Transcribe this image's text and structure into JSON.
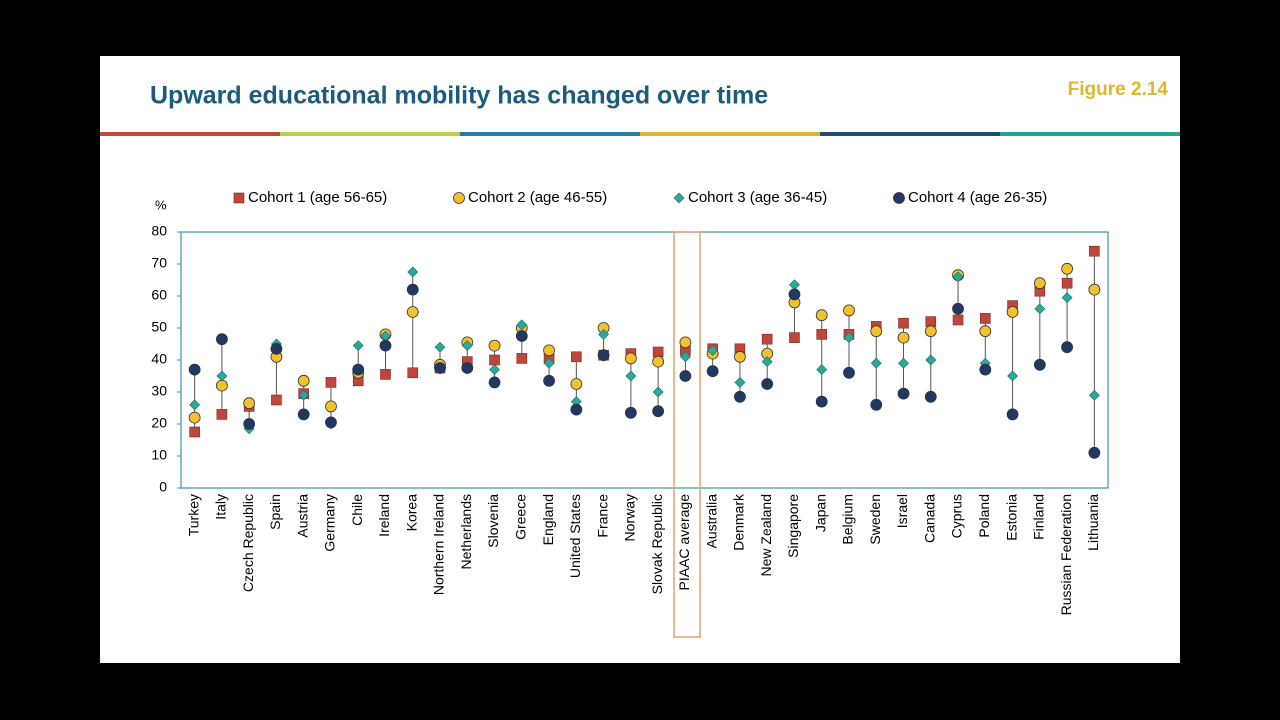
{
  "chart_data": {
    "type": "dot-range",
    "title": "Upward educational mobility has changed over time",
    "figure_label": "Figure 2.14",
    "y_label": "%",
    "categories": [
      "Turkey",
      "Italy",
      "Czech Republic",
      "Spain",
      "Austria",
      "Germany",
      "Chile",
      "Ireland",
      "Korea",
      "Northern Ireland",
      "Netherlands",
      "Slovenia",
      "Greece",
      "England",
      "United States",
      "France",
      "Norway",
      "Slovak Republic",
      "PIAAC average",
      "Australia",
      "Denmark",
      "New Zealand",
      "Singapore",
      "Japan",
      "Belgium",
      "Sweden",
      "Israel",
      "Canada",
      "Cyprus",
      "Poland",
      "Estonia",
      "Finland",
      "Russian Federation",
      "Lithuania"
    ],
    "series": [
      {
        "name": "Cohort 1 (age 56-65)",
        "color": "#c0453a",
        "marker": "square",
        "values": [
          17.5,
          23,
          25.5,
          27.5,
          29.5,
          33,
          33.5,
          35.5,
          36,
          37.5,
          39.5,
          40,
          40.5,
          40.5,
          41,
          41.5,
          42,
          42.5,
          43,
          43.5,
          43.5,
          46.5,
          47,
          48,
          48,
          50.5,
          51.5,
          52,
          52.5,
          53,
          57,
          61.5,
          64,
          74
        ]
      },
      {
        "name": "Cohort 2 (age 46-55)",
        "color": "#f2c12e",
        "marker": "circle",
        "values": [
          22,
          32,
          26.5,
          41,
          33.5,
          25.5,
          36,
          48,
          55,
          38.5,
          45.5,
          44.5,
          50,
          43,
          32.5,
          50,
          40.5,
          39.5,
          45.5,
          42,
          41,
          42,
          58,
          54,
          55.5,
          49,
          47,
          49,
          66.5,
          49,
          55,
          64,
          68.5,
          62
        ]
      },
      {
        "name": "Cohort 3 (age 36-45)",
        "color": "#2aa89a",
        "marker": "diamond",
        "values": [
          26,
          35,
          18.5,
          45,
          29,
          20,
          44.5,
          47.5,
          67.5,
          44,
          44.5,
          37,
          51,
          39,
          27,
          48,
          35,
          30,
          41,
          43,
          33,
          39.5,
          63.5,
          37,
          47,
          39,
          39,
          40,
          66,
          39,
          35,
          56,
          59.5,
          29
        ]
      },
      {
        "name": "Cohort 4 (age 26-35)",
        "color": "#1f3864",
        "marker": "circle",
        "values": [
          37,
          46.5,
          20,
          43.5,
          23,
          20.5,
          37,
          44.5,
          62,
          37.5,
          37.5,
          33,
          47.5,
          33.5,
          24.5,
          41.5,
          23.5,
          24,
          35,
          36.5,
          28.5,
          32.5,
          60.5,
          27,
          36,
          26,
          29.5,
          28.5,
          56,
          37,
          23,
          38.5,
          44,
          11
        ]
      }
    ],
    "ylim": [
      0,
      80
    ],
    "yticks": [
      0,
      10,
      20,
      30,
      40,
      50,
      60,
      70,
      80
    ],
    "grid": false
  }
}
